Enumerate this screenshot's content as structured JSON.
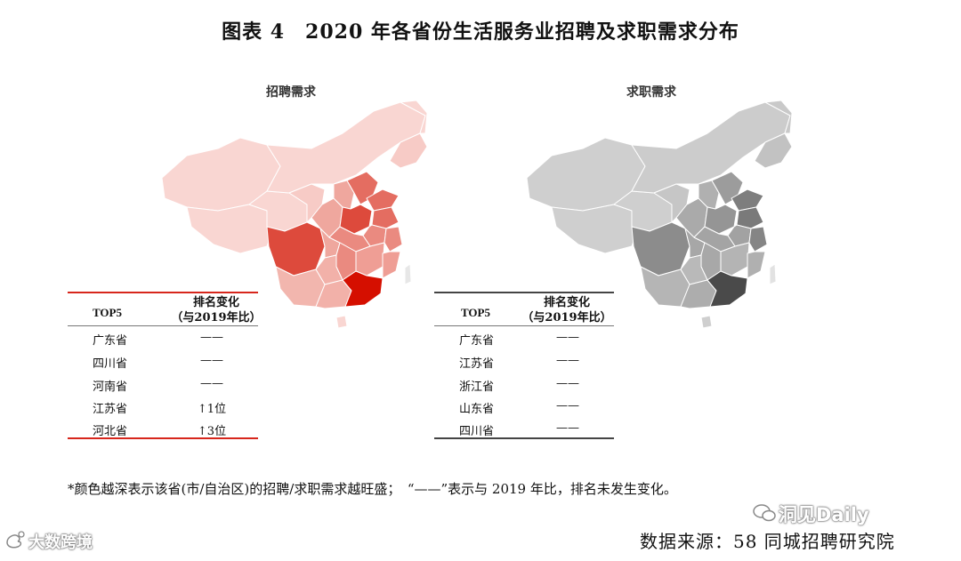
{
  "title": "图表 4　2020 年各省份生活服务业招聘及求职需求分布",
  "chart_data": [
    {
      "type": "choropleth-map",
      "title": "招聘需求",
      "palette": {
        "low": "#f9d6d2",
        "mid": "#ee9d94",
        "high": "#dd4a3c",
        "top": "#d50f00"
      },
      "top5_table": {
        "headers": [
          "TOP5",
          "排名变化",
          "（与2019年比）"
        ],
        "rows": [
          {
            "province": "广东省",
            "change": "——"
          },
          {
            "province": "四川省",
            "change": "——"
          },
          {
            "province": "河南省",
            "change": "——"
          },
          {
            "province": "江苏省",
            "change": "↑1位"
          },
          {
            "province": "河北省",
            "change": "↑3位"
          }
        ]
      }
    },
    {
      "type": "choropleth-map",
      "title": "求职需求",
      "palette": {
        "low": "#cfcfcf",
        "mid": "#a9a9a9",
        "high": "#7e7e7e",
        "top": "#4a4a4a"
      },
      "top5_table": {
        "headers": [
          "TOP5",
          "排名变化",
          "（与2019年比）"
        ],
        "rows": [
          {
            "province": "广东省",
            "change": "——"
          },
          {
            "province": "江苏省",
            "change": "——"
          },
          {
            "province": "浙江省",
            "change": "——"
          },
          {
            "province": "山东省",
            "change": "——"
          },
          {
            "province": "四川省",
            "change": "——"
          }
        ]
      }
    }
  ],
  "note": "*颜色越深表示该省(市/自治区)的招聘/求职需求越旺盛；　“——”表示与 2019 年比，排名未发生变化。",
  "source": "数据来源：58 同城招聘研究院",
  "watermarks": {
    "left": "大数跨境",
    "right": "洞见Daily"
  }
}
